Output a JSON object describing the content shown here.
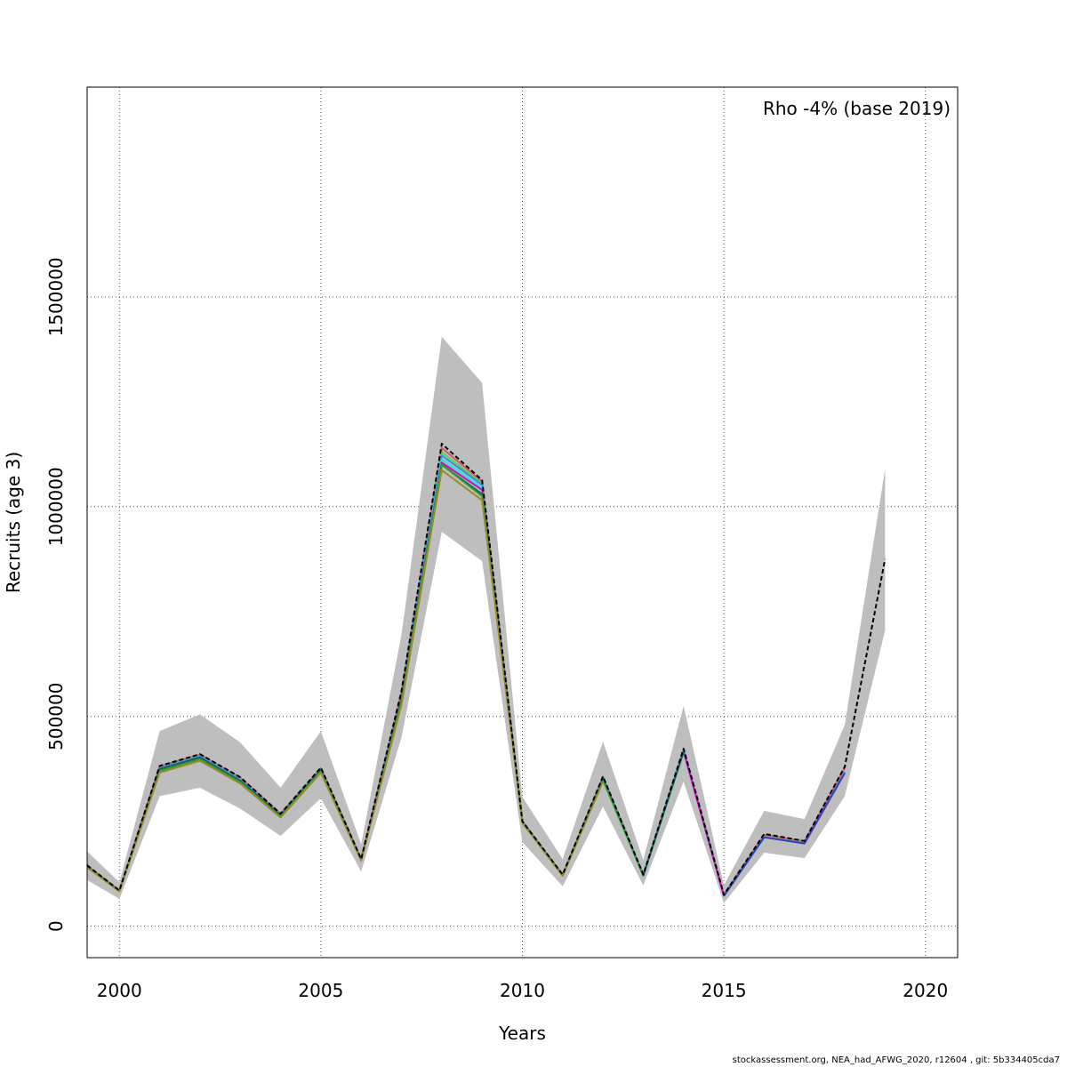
{
  "chart_data": {
    "type": "line",
    "xlabel": "Years",
    "ylabel": "Recruits (age 3)",
    "annotation": "Rho -4% (base 2019)",
    "xlim": [
      1999.2,
      2020.8
    ],
    "ylim": [
      -75000,
      2000000
    ],
    "x_ticks": [
      2000,
      2005,
      2010,
      2015,
      2020
    ],
    "x_tick_labels": [
      "2000",
      "2005",
      "2010",
      "2015",
      "2020"
    ],
    "y_ticks": [
      0,
      500000,
      1000000,
      1500000
    ],
    "y_tick_labels": [
      "0",
      "500000",
      "1000000",
      "1500000"
    ],
    "grid": true,
    "band_color": "#bebebe",
    "band": {
      "x": [
        1999.2,
        2000,
        2001,
        2002,
        2003,
        2004,
        2005,
        2006,
        2007,
        2008,
        2009,
        2010,
        2011,
        2012,
        2013,
        2014,
        2015,
        2016,
        2017,
        2018,
        2019
      ],
      "lower": [
        110000,
        65000,
        310000,
        330000,
        280000,
        215000,
        305000,
        130000,
        450000,
        940000,
        870000,
        200000,
        95000,
        285000,
        97000,
        345000,
        55000,
        175000,
        162000,
        310000,
        705000
      ],
      "upper": [
        178000,
        105000,
        465000,
        505000,
        438000,
        330000,
        465000,
        195000,
        695000,
        1405000,
        1295000,
        308000,
        160000,
        440000,
        158000,
        525000,
        98000,
        275000,
        255000,
        480000,
        1090000
      ]
    },
    "series": [
      {
        "color": "#000000",
        "dashed": true,
        "x": [
          1999.2,
          2000,
          2001,
          2002,
          2003,
          2004,
          2005,
          2006,
          2007,
          2008,
          2009,
          2010,
          2011,
          2012,
          2013,
          2014,
          2015,
          2016,
          2017,
          2018,
          2019
        ],
        "values": [
          145000,
          85000,
          382000,
          410000,
          355000,
          268000,
          378000,
          160000,
          560000,
          1150000,
          1063000,
          250000,
          123000,
          357000,
          123000,
          423000,
          75000,
          220000,
          203000,
          380000,
          875000
        ]
      },
      {
        "color": "#df536b",
        "x": [
          1999.2,
          2000,
          2001,
          2002,
          2003,
          2004,
          2005,
          2006,
          2007,
          2008,
          2009,
          2010,
          2011,
          2012,
          2013,
          2014,
          2015,
          2016,
          2017,
          2018
        ],
        "values": [
          144000,
          85000,
          381000,
          409000,
          354000,
          268000,
          377000,
          160000,
          558000,
          1140000,
          1060000,
          250000,
          122000,
          356000,
          123000,
          422000,
          75000,
          218000,
          202000,
          378000
        ]
      },
      {
        "color": "#61d04f",
        "x": [
          1999.2,
          2000,
          2001,
          2002,
          2003,
          2004,
          2005,
          2006,
          2007,
          2008,
          2009,
          2010,
          2011,
          2012,
          2013,
          2014,
          2015,
          2016,
          2017
        ],
        "values": [
          143000,
          84000,
          378000,
          406000,
          351000,
          266000,
          375000,
          159000,
          552000,
          1130000,
          1055000,
          249000,
          122000,
          355000,
          122000,
          420000,
          73000,
          213000,
          199000
        ]
      },
      {
        "color": "#2297e6",
        "x": [
          1999.2,
          2000,
          2001,
          2002,
          2003,
          2004,
          2005,
          2006,
          2007,
          2008,
          2009,
          2010,
          2011,
          2012,
          2013,
          2014,
          2015,
          2016,
          2017,
          2018
        ],
        "values": [
          143000,
          84000,
          377000,
          405000,
          350000,
          265000,
          374000,
          158000,
          550000,
          1122000,
          1052000,
          249000,
          122000,
          354000,
          122000,
          420000,
          73000,
          212000,
          198000,
          368000
        ]
      },
      {
        "color": "#28e2e5",
        "x": [
          1999.2,
          2000,
          2001,
          2002,
          2003,
          2004,
          2005,
          2006,
          2007,
          2008,
          2009,
          2010,
          2011,
          2012,
          2013,
          2014,
          2015,
          2016
        ],
        "values": [
          142000,
          84000,
          375000,
          404000,
          348000,
          264000,
          373000,
          158000,
          545000,
          1112000,
          1045000,
          248000,
          121000,
          353000,
          122000,
          418000,
          72000,
          210000
        ]
      },
      {
        "color": "#cd0bbc",
        "x": [
          1999.2,
          2000,
          2001,
          2002,
          2003,
          2004,
          2005,
          2006,
          2007,
          2008,
          2009,
          2010,
          2011,
          2012,
          2013,
          2014,
          2015
        ],
        "values": [
          142000,
          84000,
          375000,
          403000,
          347000,
          264000,
          372000,
          158000,
          543000,
          1105000,
          1040000,
          248000,
          121000,
          352000,
          121000,
          416000,
          72000
        ]
      },
      {
        "color": "#0b6b5a",
        "x": [
          1999.2,
          2000,
          2001,
          2002,
          2003,
          2004,
          2005,
          2006,
          2007,
          2008,
          2009,
          2010,
          2011,
          2012,
          2013,
          2014
        ],
        "values": [
          142000,
          84000,
          374000,
          402000,
          346000,
          263000,
          372000,
          158000,
          540000,
          1100000,
          1030000,
          248000,
          121000,
          351000,
          121000,
          415000
        ]
      },
      {
        "color": "#3b3bb5",
        "x": [
          2015,
          2016,
          2017,
          2018
        ],
        "values": [
          72000,
          212000,
          197000,
          365000
        ]
      },
      {
        "color": "#2e9e2e",
        "x": [
          1999.2,
          2000,
          2001,
          2002,
          2003,
          2004,
          2005,
          2006,
          2007,
          2008,
          2009,
          2010,
          2011,
          2012,
          2013
        ],
        "values": [
          141000,
          83000,
          370000,
          398000,
          343000,
          261000,
          369000,
          157000,
          535000,
          1100000,
          1025000,
          247000,
          120000,
          348000,
          121000
        ]
      },
      {
        "color": "#9a8b2a",
        "x": [
          1999.2,
          2000,
          2001,
          2002,
          2003,
          2004,
          2005,
          2006,
          2007,
          2008,
          2009,
          2010,
          2011,
          2012
        ],
        "values": [
          140000,
          83000,
          366000,
          394000,
          340000,
          259000,
          366000,
          156000,
          528000,
          1087000,
          1015000,
          246000,
          120000,
          345000
        ]
      }
    ]
  },
  "footer": "stockassessment.org, NEA_had_AFWG_2020, r12604 , git: 5b334405cda7"
}
